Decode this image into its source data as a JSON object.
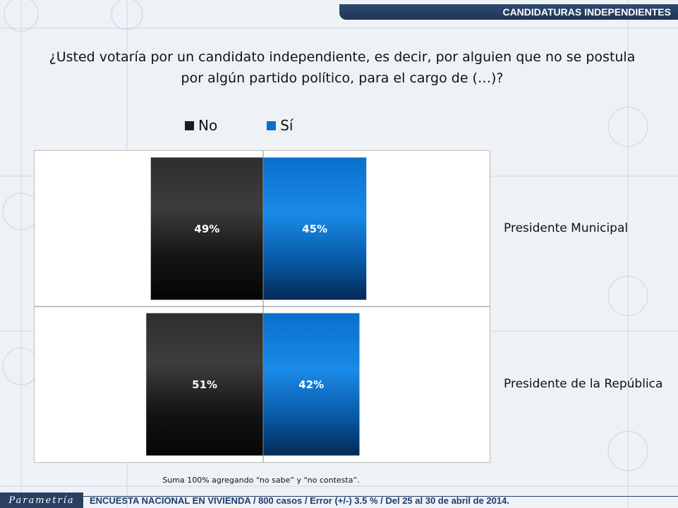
{
  "header": {
    "section_title": "CANDIDATURAS INDEPENDIENTES"
  },
  "question": {
    "line1": "¿Usted votaría por un candidato independiente, es decir, por alguien que no se postula",
    "line2": "por algún partido político, para el cargo de (…)?"
  },
  "colors": {
    "no": "#1c1c1c",
    "si": "#0a6fcc",
    "accent": "#2b3f63"
  },
  "chart_data": {
    "type": "bar",
    "orientation": "horizontal-diverging",
    "categories": [
      "Presidente Municipal",
      "Presidente de la República"
    ],
    "series": [
      {
        "name": "No",
        "values": [
          49,
          51
        ],
        "labels": [
          "49%",
          "51%"
        ],
        "color": "#1c1c1c",
        "direction": "left"
      },
      {
        "name": "Sí",
        "values": [
          45,
          42
        ],
        "labels": [
          "45%",
          "42%"
        ],
        "color": "#0a6fcc",
        "direction": "right"
      }
    ],
    "xlim": [
      -100,
      100
    ],
    "legend_position": "top",
    "grid": false
  },
  "footnote": "Suma 100% agregando “no sabe” y “no contesta”.",
  "footer": {
    "brand": "Parametría",
    "survey_text": "ENCUESTA NACIONAL EN VIVIENDA / 800 casos / Error (+/-) 3.5 % / Del 25 al 30 de abril de 2014."
  }
}
